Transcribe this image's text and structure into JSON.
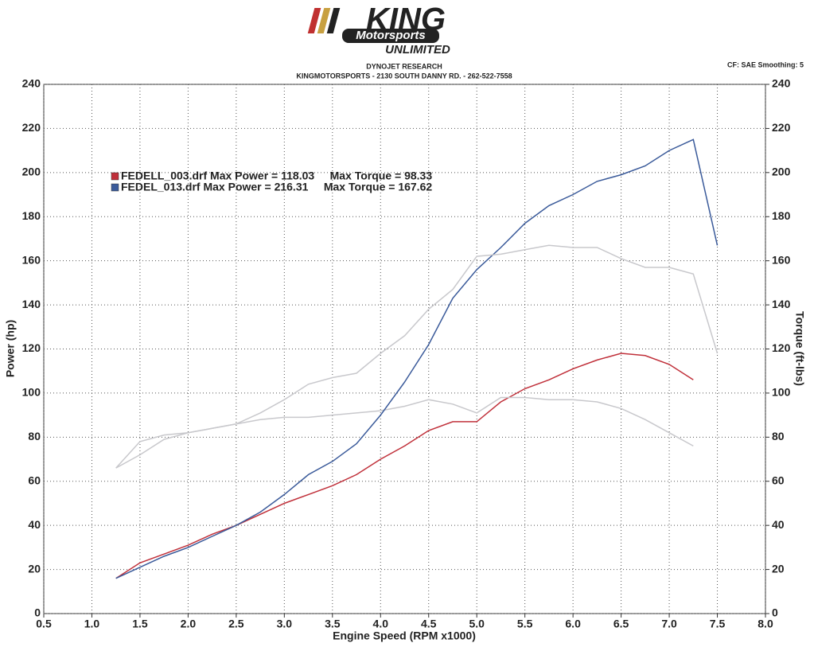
{
  "logo": {
    "name": "KING",
    "line2": "Motorsports",
    "line3": "UNLIMITED"
  },
  "header": {
    "title": "DYNOJET RESEARCH",
    "address": "KINGMOTORSPORTS - 2130 SOUTH DANNY RD. - 262-522-7558",
    "settings": "CF: SAE  Smoothing: 5"
  },
  "chart_data": {
    "type": "line",
    "xlabel": "Engine Speed (RPM x1000)",
    "ylabel": "Power (hp)",
    "y2label": "Torque (ft-lbs)",
    "x": [
      1.25,
      1.5,
      1.75,
      2.0,
      2.25,
      2.5,
      2.75,
      3.0,
      3.25,
      3.5,
      3.75,
      4.0,
      4.25,
      4.5,
      4.75,
      5.0,
      5.25,
      5.5,
      5.75,
      6.0,
      6.25,
      6.5,
      6.75,
      7.0,
      7.25,
      7.5
    ],
    "series": [
      {
        "name": "FEDELL_003.drf Max Power = 118.03     Max Torque = 98.33",
        "color": "#c0303a",
        "values": [
          16,
          23,
          27,
          31,
          36,
          40,
          45,
          50,
          54,
          58,
          63,
          70,
          76,
          83,
          87,
          87,
          96,
          102,
          106,
          111,
          115,
          118,
          117,
          113,
          106,
          null
        ]
      },
      {
        "color": "#c8c8cc",
        "axis": "y2",
        "values": [
          66,
          78,
          81,
          82,
          84,
          86,
          88,
          89,
          89,
          90,
          91,
          92,
          94,
          97,
          95,
          91,
          98,
          98,
          97,
          97,
          96,
          93,
          88,
          82,
          76,
          null
        ]
      },
      {
        "name": "FEDEL_013.drf Max Power = 216.31     Max Torque = 167.62",
        "color": "#3a5a9a",
        "values": [
          16,
          21,
          26,
          30,
          35,
          40,
          46,
          54,
          63,
          69,
          77,
          90,
          105,
          122,
          143,
          156,
          166,
          177,
          185,
          190,
          196,
          199,
          203,
          210,
          215,
          167
        ]
      },
      {
        "color": "#c8c8cc",
        "axis": "y2",
        "values": [
          66,
          72,
          79,
          82,
          84,
          86,
          91,
          97,
          104,
          107,
          109,
          118,
          126,
          138,
          147,
          162,
          163,
          165,
          167,
          166,
          166,
          161,
          157,
          157,
          154,
          118
        ]
      }
    ],
    "xlim": [
      0.5,
      8.0
    ],
    "xticks": [
      0.5,
      {
        "value": 1,
        "label": "1.0"
      },
      1.5,
      {
        "value": 2,
        "label": "2.0"
      },
      2.5,
      {
        "value": 3,
        "label": "3.0"
      },
      3.5,
      {
        "value": 4,
        "label": "4.0"
      },
      4.5,
      {
        "value": 5,
        "label": "5.0"
      },
      5.5,
      {
        "value": 6,
        "label": "6.0"
      },
      6.5,
      {
        "value": 7,
        "label": "7.0"
      },
      7.5,
      {
        "value": 8,
        "label": "8.0"
      }
    ],
    "ylim": [
      0,
      240
    ],
    "yticks": [
      0,
      20,
      40,
      60,
      80,
      100,
      120,
      140,
      160,
      180,
      200,
      220,
      240
    ],
    "y2lim": [
      0,
      240
    ],
    "y2ticks": [
      0,
      20,
      40,
      60,
      80,
      100,
      120,
      140,
      160,
      180,
      200,
      220,
      240
    ],
    "grid": true
  }
}
